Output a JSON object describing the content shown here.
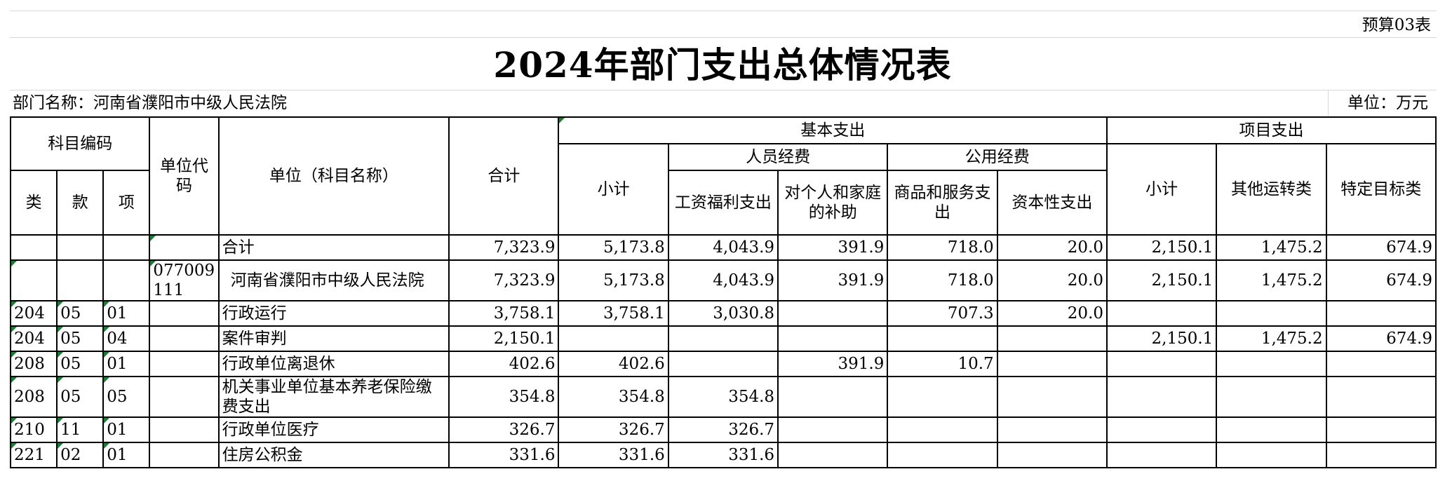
{
  "form_no": "预算03表",
  "title": "2024年部门支出总体情况表",
  "dept_label": "部门名称：河南省濮阳市中级人民法院",
  "unit_label": "单位：万元",
  "headers": {
    "subject_code": "科目编码",
    "lei": "类",
    "kuan": "款",
    "xiang": "项",
    "unit_code": "单位代码",
    "unit_name": "单位（科目名称）",
    "total": "合计",
    "basic": "基本支出",
    "basic_subtotal": "小计",
    "personnel": "人员经费",
    "wages": "工资福利支出",
    "subsidy": "对个人和家庭的补助",
    "public": "公用经费",
    "goods": "商品和服务支出",
    "capital": "资本性支出",
    "project": "项目支出",
    "project_subtotal": "小计",
    "other_ops": "其他运转类",
    "specific": "特定目标类"
  },
  "rows": [
    {
      "lei": "",
      "kuan": "",
      "xiang": "",
      "code": "",
      "name": "合计",
      "total": "7,323.9",
      "basic_sub": "5,173.8",
      "wages": "4,043.9",
      "subsidy": "391.9",
      "goods": "718.0",
      "capital": "20.0",
      "proj_sub": "2,150.1",
      "other_ops": "1,475.2",
      "specific": "674.9"
    },
    {
      "lei": "",
      "kuan": "",
      "xiang": "",
      "code": "077009111",
      "name": "  河南省濮阳市中级人民法院",
      "total": "7,323.9",
      "basic_sub": "5,173.8",
      "wages": "4,043.9",
      "subsidy": "391.9",
      "goods": "718.0",
      "capital": "20.0",
      "proj_sub": "2,150.1",
      "other_ops": "1,475.2",
      "specific": "674.9"
    },
    {
      "lei": "204",
      "kuan": "05",
      "xiang": "01",
      "code": "",
      "name": "行政运行",
      "total": "3,758.1",
      "basic_sub": "3,758.1",
      "wages": "3,030.8",
      "subsidy": "",
      "goods": "707.3",
      "capital": "20.0",
      "proj_sub": "",
      "other_ops": "",
      "specific": ""
    },
    {
      "lei": "204",
      "kuan": "05",
      "xiang": "04",
      "code": "",
      "name": "案件审判",
      "total": "2,150.1",
      "basic_sub": "",
      "wages": "",
      "subsidy": "",
      "goods": "",
      "capital": "",
      "proj_sub": "2,150.1",
      "other_ops": "1,475.2",
      "specific": "674.9"
    },
    {
      "lei": "208",
      "kuan": "05",
      "xiang": "01",
      "code": "",
      "name": "行政单位离退休",
      "total": "402.6",
      "basic_sub": "402.6",
      "wages": "",
      "subsidy": "391.9",
      "goods": "10.7",
      "capital": "",
      "proj_sub": "",
      "other_ops": "",
      "specific": ""
    },
    {
      "lei": "208",
      "kuan": "05",
      "xiang": "05",
      "code": "",
      "name": "机关事业单位基本养老保险缴费支出",
      "total": "354.8",
      "basic_sub": "354.8",
      "wages": "354.8",
      "subsidy": "",
      "goods": "",
      "capital": "",
      "proj_sub": "",
      "other_ops": "",
      "specific": ""
    },
    {
      "lei": "210",
      "kuan": "11",
      "xiang": "01",
      "code": "",
      "name": "行政单位医疗",
      "total": "326.7",
      "basic_sub": "326.7",
      "wages": "326.7",
      "subsidy": "",
      "goods": "",
      "capital": "",
      "proj_sub": "",
      "other_ops": "",
      "specific": ""
    },
    {
      "lei": "221",
      "kuan": "02",
      "xiang": "01",
      "code": "",
      "name": "住房公积金",
      "total": "331.6",
      "basic_sub": "331.6",
      "wages": "331.6",
      "subsidy": "",
      "goods": "",
      "capital": "",
      "proj_sub": "",
      "other_ops": "",
      "specific": ""
    }
  ]
}
